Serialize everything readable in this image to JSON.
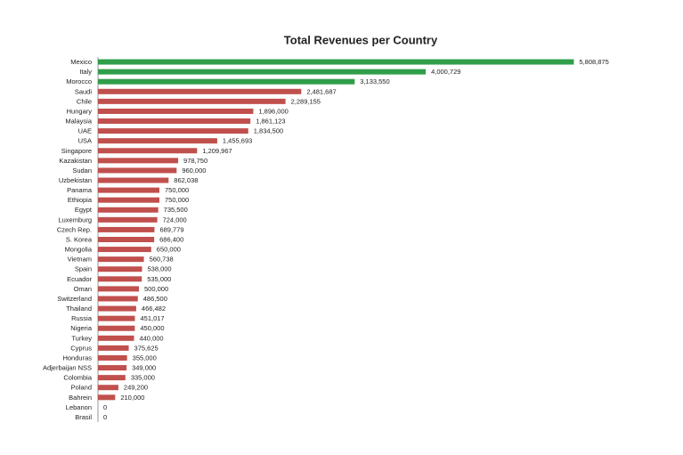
{
  "chart_data": {
    "type": "hbar",
    "title": "Total Revenues per Country",
    "categories": [
      "Mexico",
      "Italy",
      "Morocco",
      "Saudi",
      "Chile",
      "Hungary",
      "Malaysia",
      "UAE",
      "USA",
      "Singapore",
      "Kazakistan",
      "Sudan",
      "Uzbekistan",
      "Panama",
      "Ethiopia",
      "Egypt",
      "Luxemburg",
      "Czech Rep.",
      "S. Korea",
      "Mongolia",
      "Vietnam",
      "Spain",
      "Ecuador",
      "Oman",
      "Switzerland",
      "Thailand",
      "Russia",
      "Nigeria",
      "Turkey",
      "Cyprus",
      "Honduras",
      "Adjerbaijan NSS",
      "Colombia",
      "Poland",
      "Bahrein",
      "Lebanon",
      "Brasil"
    ],
    "values": [
      5808875,
      4000729,
      3133550,
      2481687,
      2289155,
      1896000,
      1861123,
      1834500,
      1455693,
      1209967,
      978750,
      960000,
      862038,
      750000,
      750000,
      735500,
      724000,
      689779,
      686400,
      650000,
      560738,
      538000,
      535000,
      500000,
      486500,
      466482,
      451017,
      450000,
      440000,
      375625,
      355000,
      349000,
      335000,
      249200,
      210000,
      0,
      0
    ],
    "value_labels": [
      "5,808,875",
      "4,000,729",
      "3,133,550",
      "2,481,687",
      "2,289,155",
      "1,896,000",
      "1,861,123",
      "1,834,500",
      "1,455,693",
      "1,209,967",
      "978,750",
      "960,000",
      "862,038",
      "750,000",
      "750,000",
      "735,500",
      "724,000",
      "689,779",
      "686,400",
      "650,000",
      "560,738",
      "538,000",
      "535,000",
      "500,000",
      "486,500",
      "466,482",
      "451,017",
      "450,000",
      "440,000",
      "375,625",
      "355,000",
      "349,000",
      "335,000",
      "249,200",
      "210,000",
      "0",
      "0"
    ],
    "colors": [
      "#2f9e4a",
      "#2f9e4a",
      "#2f9e4a",
      "#c0504d",
      "#c0504d",
      "#c0504d",
      "#c0504d",
      "#c0504d",
      "#c0504d",
      "#c0504d",
      "#c0504d",
      "#c0504d",
      "#c0504d",
      "#c0504d",
      "#c0504d",
      "#c0504d",
      "#c0504d",
      "#c0504d",
      "#c0504d",
      "#c0504d",
      "#c0504d",
      "#c0504d",
      "#c0504d",
      "#c0504d",
      "#c0504d",
      "#c0504d",
      "#c0504d",
      "#c0504d",
      "#c0504d",
      "#c0504d",
      "#c0504d",
      "#c0504d",
      "#c0504d",
      "#c0504d",
      "#c0504d",
      "#c0504d",
      "#c0504d"
    ],
    "xlim": [
      0,
      6000000
    ]
  }
}
